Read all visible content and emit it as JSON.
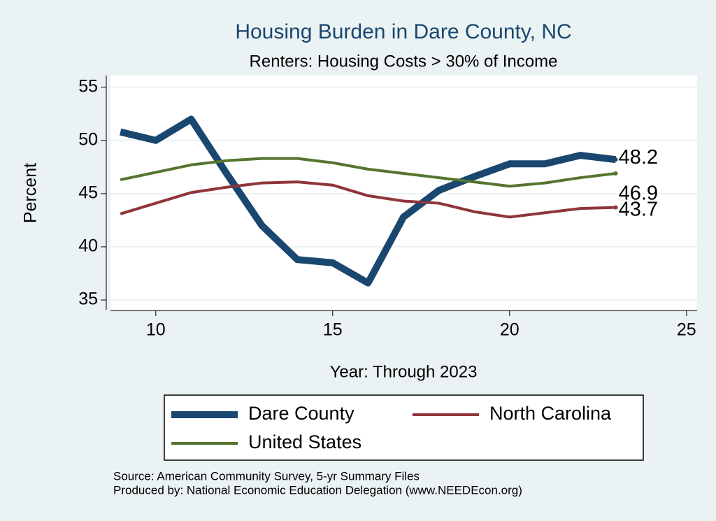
{
  "chart_data": {
    "type": "line",
    "title": "Housing Burden in Dare County, NC",
    "subtitle": "Renters: Housing Costs > 30% of Income",
    "y_label": "Percent",
    "x_label": "Year: Through 2023",
    "x": [
      9,
      10,
      11,
      12,
      13,
      14,
      15,
      16,
      17,
      18,
      19,
      20,
      21,
      22,
      23
    ],
    "series": [
      {
        "name": "Dare County",
        "color": "#1a476f",
        "values": [
          50.8,
          50.0,
          52.0,
          46.9,
          42.0,
          38.8,
          38.5,
          36.6,
          42.8,
          45.3,
          46.6,
          47.8,
          47.8,
          48.6,
          48.2
        ]
      },
      {
        "name": "North Carolina",
        "color": "#90353b",
        "values": [
          43.1,
          44.1,
          45.1,
          45.6,
          46.0,
          46.1,
          45.8,
          44.8,
          44.3,
          44.1,
          43.3,
          42.8,
          43.2,
          43.6,
          43.7
        ]
      },
      {
        "name": "United States",
        "color": "#55752f",
        "values": [
          46.3,
          47.0,
          47.7,
          48.1,
          48.3,
          48.3,
          47.9,
          47.3,
          46.9,
          46.5,
          46.1,
          45.7,
          46.0,
          46.5,
          46.9
        ]
      }
    ],
    "xlim": [
      8.72,
      25.3
    ],
    "xticks": [
      10,
      15,
      20,
      25
    ],
    "ylim": [
      34.08,
      56.1
    ],
    "yticks": [
      35,
      40,
      45,
      50,
      55
    ],
    "grid": true,
    "notes": [
      "Source: American Community Survey, 5-yr Summary Files",
      "Produced by: National Economic Education Delegation (www.NEEDEcon.org)"
    ]
  }
}
